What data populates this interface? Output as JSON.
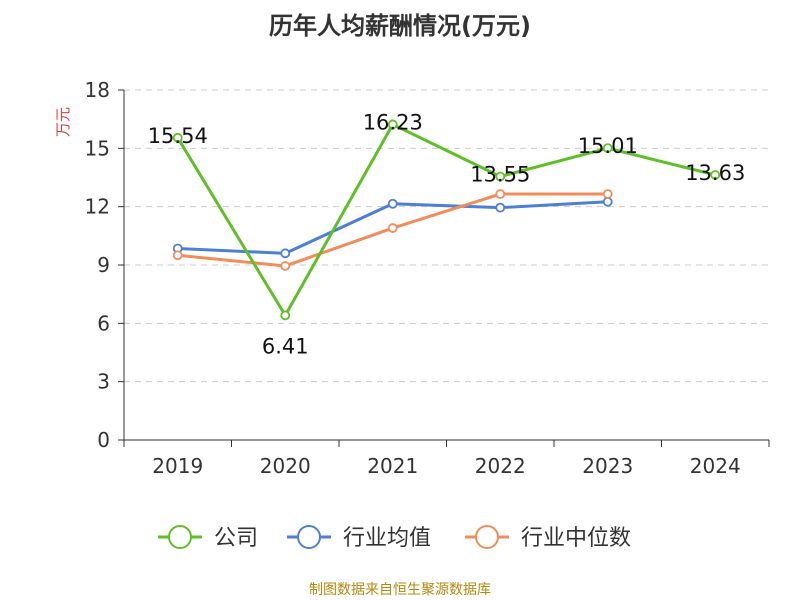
{
  "chart_data": {
    "type": "line",
    "title": "历年人均薪酬情况(万元)",
    "ylabel": "万元",
    "xlabel": "",
    "categories": [
      "2019",
      "2020",
      "2021",
      "2022",
      "2023",
      "2024"
    ],
    "ylim": [
      0,
      18
    ],
    "yticks": [
      0,
      3,
      6,
      9,
      12,
      15,
      18
    ],
    "grid": true,
    "legend_position": "bottom",
    "series": [
      {
        "name": "公司",
        "color": "#5fbf27",
        "values": [
          15.54,
          6.41,
          16.23,
          13.55,
          15.01,
          13.63
        ],
        "labels": [
          "15.54",
          "6.41",
          "16.23",
          "13.55",
          "15.01",
          "13.63"
        ]
      },
      {
        "name": "行业均值",
        "color": "#4e7fd6",
        "values": [
          9.85,
          9.6,
          12.15,
          11.95,
          12.25,
          null
        ]
      },
      {
        "name": "行业中位数",
        "color": "#f28c5a",
        "values": [
          9.5,
          8.95,
          10.9,
          12.65,
          12.65,
          null
        ]
      }
    ]
  },
  "footer": {
    "source": "制图数据来自恒生聚源数据库"
  }
}
